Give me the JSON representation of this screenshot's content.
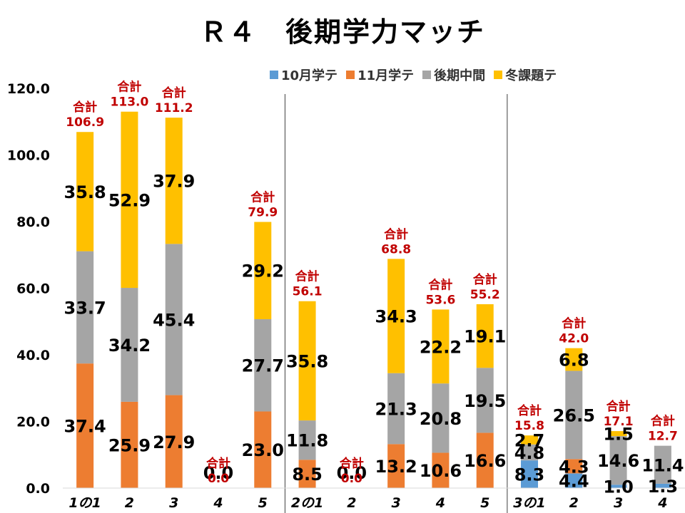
{
  "chart_data": {
    "type": "bar",
    "stacked": true,
    "title": "Ｒ４　後期学力マッチ",
    "total_prefix": "合計",
    "categories": [
      "1の1",
      "2",
      "3",
      "4",
      "5",
      "2の1",
      "2",
      "3",
      "4",
      "5",
      "3の1",
      "2",
      "3",
      "4"
    ],
    "series": [
      {
        "name": "10月学テ",
        "color": "#5b9bd5",
        "values": [
          0,
          0,
          0,
          0,
          0,
          0,
          0,
          0,
          0,
          0,
          8.3,
          4.4,
          1.0,
          1.3
        ]
      },
      {
        "name": "11月学テ",
        "color": "#ed7d31",
        "values": [
          37.4,
          25.9,
          27.9,
          0,
          23.0,
          8.5,
          0,
          13.2,
          10.6,
          16.6,
          0,
          4.3,
          0,
          0
        ]
      },
      {
        "name": "後期中間",
        "color": "#a5a5a5",
        "values": [
          33.7,
          34.2,
          45.4,
          0,
          27.7,
          11.8,
          0,
          21.3,
          20.8,
          19.5,
          4.8,
          26.5,
          14.6,
          11.4
        ]
      },
      {
        "name": "冬課題テ",
        "color": "#ffc000",
        "values": [
          35.8,
          52.9,
          37.9,
          0,
          29.2,
          35.8,
          0,
          34.3,
          22.2,
          19.1,
          2.7,
          6.8,
          1.5,
          0
        ]
      }
    ],
    "totals": [
      "106.9",
      "113.0",
      "111.2",
      "0.0",
      "79.9",
      "56.1",
      "0.0",
      "68.8",
      "53.6",
      "55.2",
      "15.8",
      "42.0",
      "17.1",
      "12.7"
    ],
    "segment_labels": [
      [
        null,
        null,
        null,
        null,
        null,
        null,
        null,
        null,
        null,
        null,
        "8.3",
        "4.4",
        "1.0",
        "1.3"
      ],
      [
        "37.4",
        "25.9",
        "27.9",
        "0.0",
        "23.0",
        "8.5",
        "0.0",
        "13.2",
        "10.6",
        "16.6",
        null,
        "4.3",
        null,
        null
      ],
      [
        "33.7",
        "34.2",
        "45.4",
        null,
        "27.7",
        "11.8",
        null,
        "21.3",
        "20.8",
        "19.5",
        "4.8",
        "26.5",
        "14.6",
        "11.4"
      ],
      [
        "35.8",
        "52.9",
        "37.9",
        null,
        "29.2",
        "35.8",
        null,
        "34.3",
        "22.2",
        "19.1",
        "2.7",
        "6.8",
        "1.5",
        null
      ]
    ],
    "ylim": [
      0,
      120
    ],
    "yticks": [
      "0.0",
      "20.0",
      "40.0",
      "60.0",
      "80.0",
      "100.0",
      "120.0"
    ],
    "group_dividers_after": [
      4,
      9
    ],
    "legend_position": "top-right",
    "grid": false
  }
}
